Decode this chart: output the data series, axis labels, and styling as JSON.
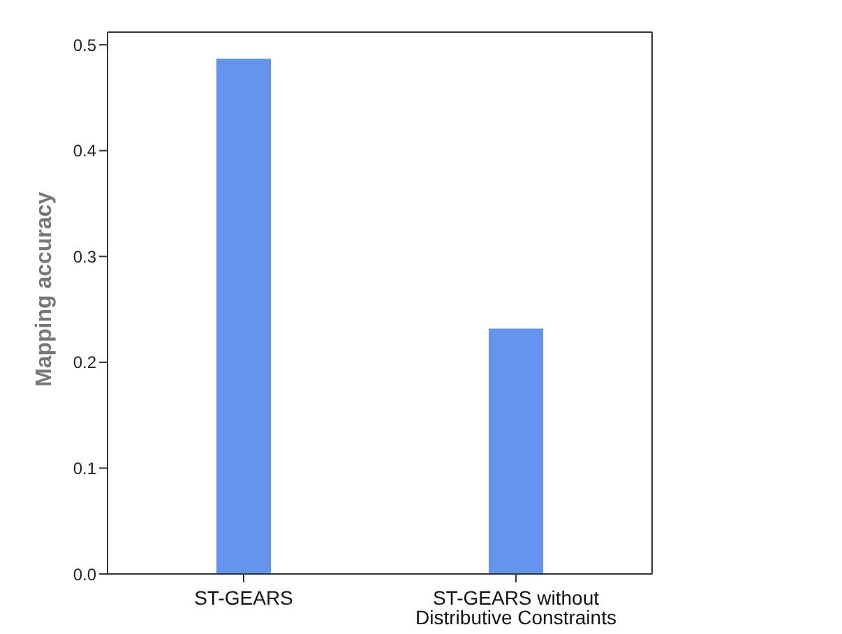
{
  "chart_data": {
    "type": "bar",
    "ylabel": "Mapping accuracy",
    "categories": [
      "ST-GEARS",
      "ST-GEARS without Distributive Constraints"
    ],
    "values": [
      0.487,
      0.232
    ],
    "color": "#6495ed",
    "ylim": [
      0,
      0.512
    ],
    "yticks": [
      {
        "value": 0,
        "label": "0.0"
      },
      0.1,
      0.2,
      0.3,
      0.4,
      0.5
    ]
  }
}
